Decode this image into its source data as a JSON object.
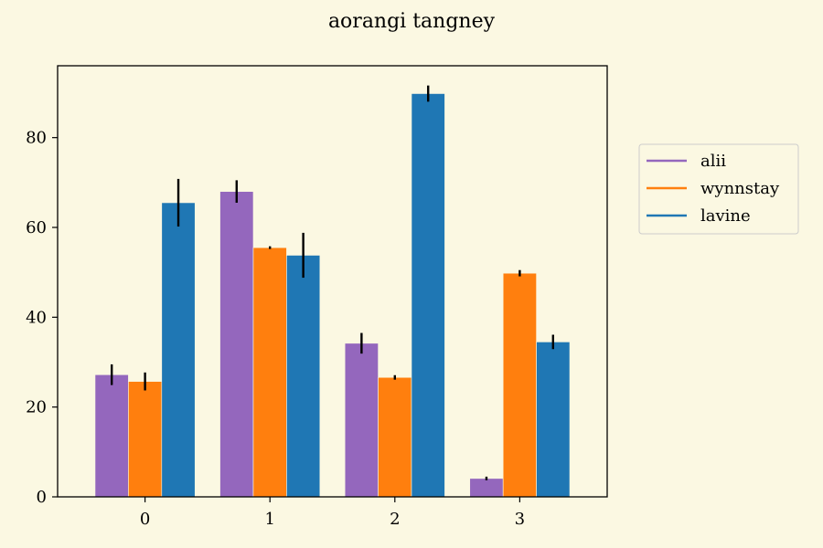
{
  "chart_data": {
    "type": "bar",
    "title": "aorangi tangney",
    "xlabel": "",
    "ylabel": "",
    "categories": [
      "0",
      "1",
      "2",
      "3"
    ],
    "ylim": [
      0,
      96
    ],
    "yticks": [
      0,
      20,
      40,
      60,
      80
    ],
    "grid": false,
    "legend_position": "outside-right",
    "series": [
      {
        "name": "alii",
        "color": "#9467bd",
        "values": [
          27.2,
          68.0,
          34.2,
          4.1
        ],
        "errors": [
          2.3,
          2.5,
          2.3,
          0.4
        ]
      },
      {
        "name": "wynnstay",
        "color": "#ff7f0e",
        "values": [
          25.7,
          55.5,
          26.6,
          49.8
        ],
        "errors": [
          2.0,
          0.3,
          0.5,
          0.7
        ]
      },
      {
        "name": "lavine",
        "color": "#1f77b4",
        "values": [
          65.5,
          53.8,
          89.8,
          34.5
        ],
        "errors": [
          5.3,
          5.0,
          1.8,
          1.6
        ]
      }
    ]
  }
}
